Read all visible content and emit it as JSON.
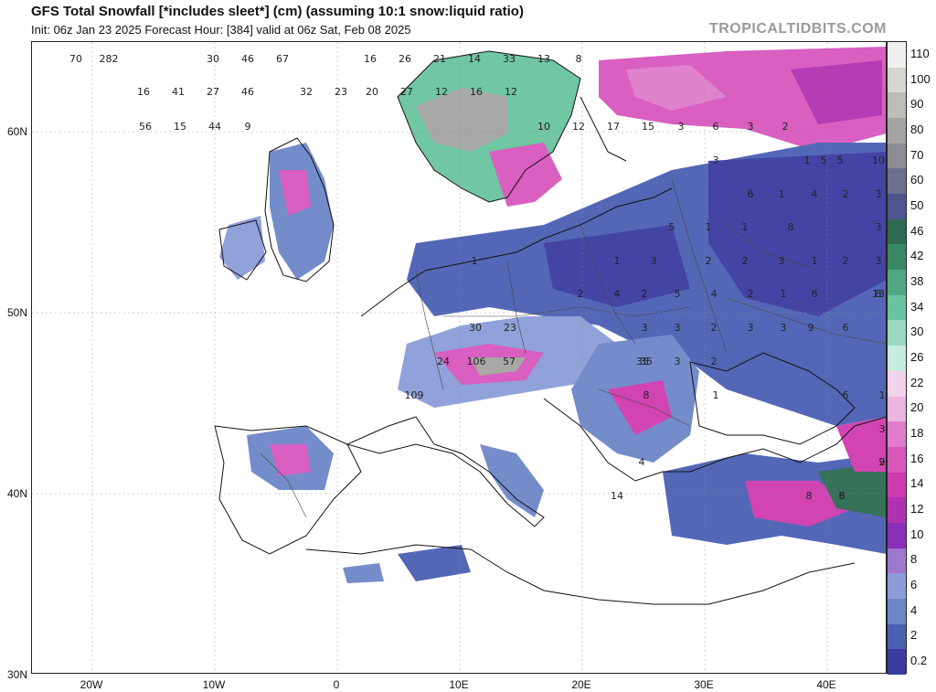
{
  "header": {
    "title": "GFS Total Snowfall [*includes sleet*] (cm) (assuming 10:1 snow:liquid ratio)",
    "subtitle": "Init: 06z Jan 23 2025   Forecast Hour: [384]   valid at 06z Sat, Feb 08 2025",
    "watermark": "TROPICALTIDBITS.COM"
  },
  "axes": {
    "lat_labels": [
      "60N",
      "50N",
      "40N",
      "30N"
    ],
    "lon_labels": [
      "20W",
      "10W",
      "0",
      "10E",
      "20E",
      "30E",
      "40E"
    ]
  },
  "colorbar": {
    "labels": [
      "110",
      "100",
      "90",
      "80",
      "70",
      "60",
      "50",
      "46",
      "42",
      "38",
      "34",
      "30",
      "26",
      "22",
      "20",
      "18",
      "16",
      "14",
      "12",
      "10",
      "8",
      "6",
      "4",
      "2",
      "0.2"
    ],
    "colors": [
      "#efefef",
      "#d6d6d0",
      "#bdbdb8",
      "#a4a4a2",
      "#8c8c94",
      "#6e6f8e",
      "#4c5590",
      "#2c6a52",
      "#3a8766",
      "#4fa882",
      "#6ac3a0",
      "#9ad8c0",
      "#c8ebdf",
      "#f0d2ea",
      "#e9b4de",
      "#e07ccb",
      "#d857bd",
      "#cf3aae",
      "#b032b0",
      "#8a2fb7",
      "#9c78cf",
      "#8c9cd8",
      "#6d86c8",
      "#4b5fb3",
      "#3a3aa0"
    ]
  },
  "map_values": [
    {
      "text": "70"
    },
    {
      "text": "282"
    },
    {
      "text": "16"
    },
    {
      "text": "41"
    },
    {
      "text": "27"
    },
    {
      "text": "46"
    },
    {
      "text": "56"
    },
    {
      "text": "15"
    },
    {
      "text": "44"
    },
    {
      "text": "9"
    },
    {
      "text": "30"
    },
    {
      "text": "46"
    },
    {
      "text": "67"
    },
    {
      "text": "16"
    },
    {
      "text": "26"
    },
    {
      "text": "21"
    },
    {
      "text": "14"
    },
    {
      "text": "33"
    },
    {
      "text": "13"
    },
    {
      "text": "8"
    },
    {
      "text": "32"
    },
    {
      "text": "23"
    },
    {
      "text": "20"
    },
    {
      "text": "27"
    },
    {
      "text": "12"
    },
    {
      "text": "16"
    },
    {
      "text": "12"
    },
    {
      "text": "10"
    },
    {
      "text": "12"
    },
    {
      "text": "17"
    },
    {
      "text": "15"
    },
    {
      "text": "3"
    },
    {
      "text": "6"
    },
    {
      "text": "3"
    },
    {
      "text": "2"
    },
    {
      "text": "1"
    },
    {
      "text": "5"
    },
    {
      "text": "5"
    },
    {
      "text": "10"
    },
    {
      "text": "3"
    },
    {
      "text": "3"
    },
    {
      "text": "6"
    },
    {
      "text": "1"
    },
    {
      "text": "4"
    },
    {
      "text": "2"
    },
    {
      "text": "3"
    },
    {
      "text": "5"
    },
    {
      "text": "1"
    },
    {
      "text": "1"
    },
    {
      "text": "8"
    },
    {
      "text": "1"
    },
    {
      "text": "1"
    },
    {
      "text": "3"
    },
    {
      "text": "2"
    },
    {
      "text": "2"
    },
    {
      "text": "3"
    },
    {
      "text": "1"
    },
    {
      "text": "2"
    },
    {
      "text": "3"
    },
    {
      "text": "8"
    },
    {
      "text": "2"
    },
    {
      "text": "4"
    },
    {
      "text": "2"
    },
    {
      "text": "5"
    },
    {
      "text": "4"
    },
    {
      "text": "2"
    },
    {
      "text": "1"
    },
    {
      "text": "6"
    },
    {
      "text": "13"
    },
    {
      "text": "30"
    },
    {
      "text": "23"
    },
    {
      "text": "3"
    },
    {
      "text": "3"
    },
    {
      "text": "2"
    },
    {
      "text": "3"
    },
    {
      "text": "3"
    },
    {
      "text": "9"
    },
    {
      "text": "6"
    },
    {
      "text": "35"
    },
    {
      "text": "24"
    },
    {
      "text": "106"
    },
    {
      "text": "57"
    },
    {
      "text": "35"
    },
    {
      "text": "3"
    },
    {
      "text": "2"
    },
    {
      "text": "8"
    },
    {
      "text": "1"
    },
    {
      "text": "6"
    },
    {
      "text": "109"
    },
    {
      "text": "3"
    },
    {
      "text": "2"
    },
    {
      "text": "4"
    },
    {
      "text": "9"
    },
    {
      "text": "6"
    },
    {
      "text": "8"
    },
    {
      "text": "8"
    },
    {
      "text": "14"
    },
    {
      "text": "1"
    }
  ]
}
